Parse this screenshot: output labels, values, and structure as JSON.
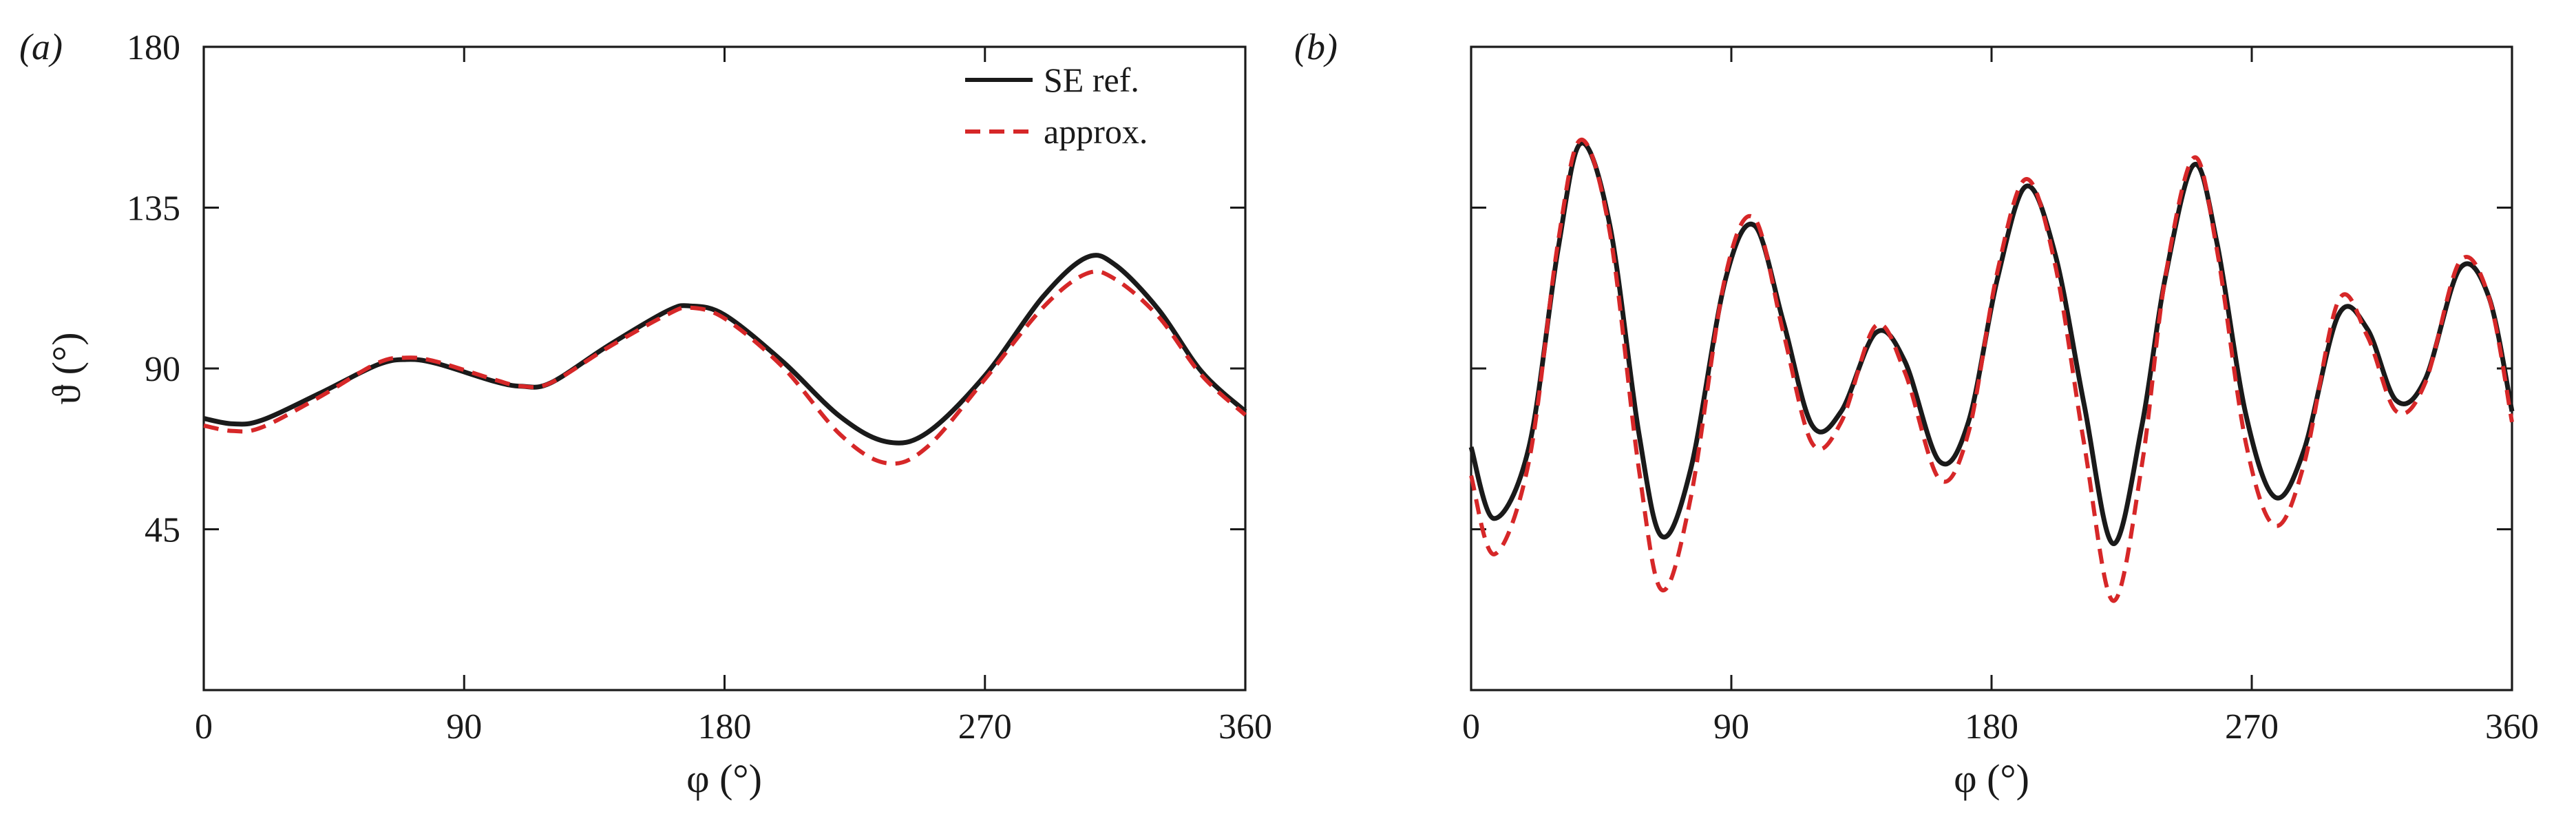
{
  "figure": {
    "panel_a_label": "(a)",
    "panel_b_label": "(b)"
  },
  "legend": {
    "ref_label": "SE ref.",
    "approx_label": "approx."
  },
  "colors": {
    "ref": "#1a1a1a",
    "approx": "#d62728",
    "axis": "#1a1a1a"
  },
  "chart_data": [
    {
      "type": "line",
      "panel": "(a)",
      "xlabel": "φ (°)",
      "ylabel": "ϑ (°)",
      "xlim": [
        0,
        360
      ],
      "ylim": [
        0,
        180
      ],
      "xticks": [
        0,
        90,
        180,
        270,
        360
      ],
      "yticks": [
        45,
        90,
        135,
        180
      ],
      "legend_position": "top-right",
      "series": [
        {
          "name": "SE ref.",
          "style": "solid",
          "x": [
            0,
            10,
            20,
            40,
            60,
            70,
            80,
            100,
            110,
            120,
            140,
            160,
            168,
            180,
            200,
            220,
            236,
            250,
            270,
            290,
            305,
            315,
            330,
            345,
            360
          ],
          "y": [
            76,
            74.5,
            75.5,
            83,
            91,
            92.5,
            91.5,
            86.5,
            85,
            86,
            96.5,
            106,
            107.5,
            105,
            92,
            76.5,
            69.5,
            72,
            88,
            110,
            121,
            119,
            106.5,
            89,
            78
          ]
        },
        {
          "name": "approx.",
          "style": "dashed",
          "x": [
            0,
            10,
            20,
            40,
            60,
            70,
            80,
            100,
            110,
            120,
            140,
            160,
            168,
            180,
            200,
            220,
            236,
            250,
            270,
            290,
            305,
            315,
            330,
            345,
            360
          ],
          "y": [
            74,
            72.5,
            73.5,
            82,
            91.5,
            93,
            92,
            87,
            85,
            86,
            96,
            105,
            107,
            104,
            90.5,
            71.5,
            63.5,
            68,
            87,
            107,
            116.5,
            115,
            104.5,
            88,
            77
          ]
        }
      ]
    },
    {
      "type": "line",
      "panel": "(b)",
      "xlabel": "φ (°)",
      "ylabel": "",
      "xlim": [
        0,
        360
      ],
      "ylim": [
        0,
        180
      ],
      "xticks": [
        0,
        90,
        180,
        270,
        360
      ],
      "yticks": [
        45,
        90,
        135,
        180
      ],
      "series": [
        {
          "name": "SE ref.",
          "style": "solid",
          "x": [
            0,
            8,
            20,
            30,
            38,
            48,
            58,
            66,
            76,
            88,
            98,
            108,
            118,
            128,
            140,
            150,
            162,
            172,
            182,
            192,
            202,
            212,
            222,
            232,
            240,
            250,
            258,
            268,
            278,
            288,
            300,
            310,
            320,
            330,
            342,
            352,
            360
          ],
          "y": [
            68,
            48,
            68,
            123,
            153,
            130,
            72,
            43,
            62,
            115,
            130,
            103,
            74,
            78,
            100,
            92,
            64,
            75,
            115,
            141,
            122,
            80,
            41,
            74,
            115,
            147,
            125,
            77,
            54,
            67,
            105,
            101,
            81,
            87,
            118,
            110,
            78
          ]
        },
        {
          "name": "approx.",
          "style": "dashed",
          "x": [
            0,
            8,
            20,
            30,
            38,
            48,
            58,
            66,
            76,
            88,
            98,
            108,
            118,
            128,
            140,
            150,
            162,
            172,
            182,
            192,
            202,
            212,
            222,
            232,
            240,
            250,
            258,
            268,
            278,
            288,
            300,
            310,
            320,
            330,
            342,
            352,
            360
          ],
          "y": [
            60,
            38,
            64,
            125,
            154,
            128,
            62,
            28,
            54,
            116,
            132,
            100,
            69,
            75,
            102,
            89,
            59,
            72,
            117,
            143,
            119,
            69,
            25,
            63,
            115,
            149,
            123,
            69,
            46,
            63,
            109,
            99,
            78,
            86,
            120,
            110,
            75
          ]
        }
      ]
    }
  ]
}
